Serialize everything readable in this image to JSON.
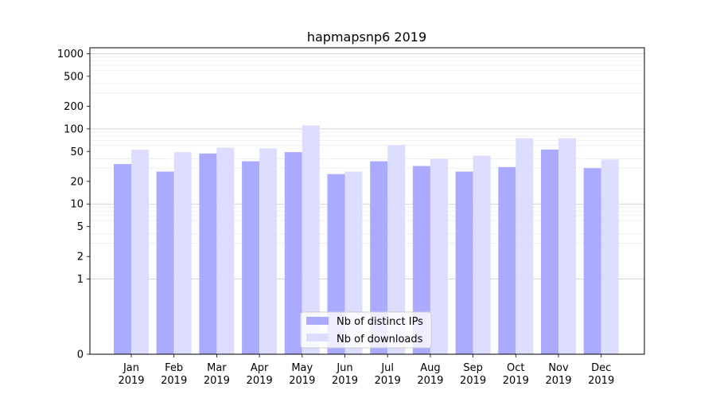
{
  "chart_data": {
    "type": "bar",
    "title": "hapmapsnp6 2019",
    "xlabel": "",
    "ylabel": "",
    "yscale": "symlog",
    "ylim": [
      0,
      1200
    ],
    "yticks": [
      {
        "value": 0,
        "label": "0"
      },
      {
        "value": 1,
        "label": "1"
      },
      {
        "value": 2,
        "label": "2"
      },
      {
        "value": 5,
        "label": "5"
      },
      {
        "value": 10,
        "label": "10"
      },
      {
        "value": 20,
        "label": "20"
      },
      {
        "value": 50,
        "label": "50"
      },
      {
        "value": 100,
        "label": "100"
      },
      {
        "value": 200,
        "label": "200"
      },
      {
        "value": 500,
        "label": "500"
      },
      {
        "value": 1000,
        "label": "1000"
      }
    ],
    "categories": [
      [
        "Jan",
        "2019"
      ],
      [
        "Feb",
        "2019"
      ],
      [
        "Mar",
        "2019"
      ],
      [
        "Apr",
        "2019"
      ],
      [
        "May",
        "2019"
      ],
      [
        "Jun",
        "2019"
      ],
      [
        "Jul",
        "2019"
      ],
      [
        "Aug",
        "2019"
      ],
      [
        "Sep",
        "2019"
      ],
      [
        "Oct",
        "2019"
      ],
      [
        "Nov",
        "2019"
      ],
      [
        "Dec",
        "2019"
      ]
    ],
    "series": [
      {
        "name": "Nb of distinct IPs",
        "color": "#aaaaff",
        "values": [
          34,
          27,
          47,
          37,
          49,
          25,
          37,
          32,
          27,
          31,
          53,
          30
        ]
      },
      {
        "name": "Nb of downloads",
        "color": "#ddddff",
        "values": [
          53,
          49,
          56,
          55,
          111,
          27,
          61,
          40,
          44,
          75,
          75,
          39
        ]
      }
    ],
    "legend_position": "lower center",
    "grid": true
  }
}
